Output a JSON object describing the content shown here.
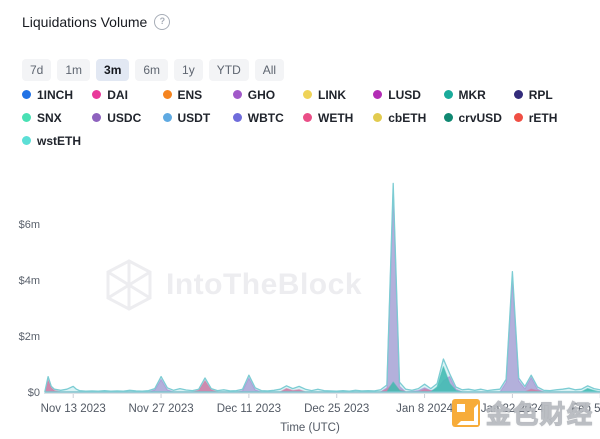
{
  "header": {
    "title": "Liquidations Volume",
    "help_icon": "?"
  },
  "time_range": {
    "options": [
      "7d",
      "1m",
      "3m",
      "6m",
      "1y",
      "YTD",
      "All"
    ],
    "selected": "3m"
  },
  "legend": {
    "items": [
      {
        "label": "1INCH",
        "color": "#2172E5"
      },
      {
        "label": "DAI",
        "color": "#E9399B"
      },
      {
        "label": "ENS",
        "color": "#F5841F"
      },
      {
        "label": "GHO",
        "color": "#A159C9"
      },
      {
        "label": "LINK",
        "color": "#EFD358"
      },
      {
        "label": "LUSD",
        "color": "#B32DB5"
      },
      {
        "label": "MKR",
        "color": "#1AAB9B"
      },
      {
        "label": "RPL",
        "color": "#332C7B"
      },
      {
        "label": "SNX",
        "color": "#49E0B4"
      },
      {
        "label": "USDC",
        "color": "#8E62BE"
      },
      {
        "label": "USDT",
        "color": "#5FAAE2"
      },
      {
        "label": "WBTC",
        "color": "#6F6CDB"
      },
      {
        "label": "WETH",
        "color": "#EA4E87"
      },
      {
        "label": "cbETH",
        "color": "#E2CB4F"
      },
      {
        "label": "crvUSD",
        "color": "#108872"
      },
      {
        "label": "rETH",
        "color": "#F04F44"
      },
      {
        "label": "wstETH",
        "color": "#5CDFD6"
      }
    ]
  },
  "watermark": {
    "brand": "IntoTheBlock"
  },
  "footer_watermark": {
    "text": "金色财经"
  },
  "chart_data": {
    "type": "area",
    "title": "Liquidations Volume",
    "xlabel": "Time (UTC)",
    "ylabel": "",
    "unit": "USD millions",
    "x_unit": "days since 2023-11-06",
    "ylim": [
      0,
      7.8
    ],
    "grid": false,
    "y_ticks": [
      {
        "value": 0,
        "label": "$0"
      },
      {
        "value": 2,
        "label": "$2m"
      },
      {
        "value": 4,
        "label": "$4m"
      },
      {
        "value": 6,
        "label": "$6m"
      }
    ],
    "x_ticks": [
      {
        "day": 7,
        "label": "Nov 13 2023"
      },
      {
        "day": 21,
        "label": "Nov 27 2023"
      },
      {
        "day": 35,
        "label": "Dec 11 2023"
      },
      {
        "day": 49,
        "label": "Dec 25 2023"
      },
      {
        "day": 63,
        "label": "Jan 8 2024"
      },
      {
        "day": 77,
        "label": "Jan 22 2024"
      },
      {
        "day": 91,
        "label": "Feb 5 2024"
      }
    ],
    "notable_peaks": [
      {
        "date": "Nov 9 2023",
        "total_m": 0.55
      },
      {
        "date": "Nov 27 2023",
        "total_m": 0.55
      },
      {
        "date": "Dec 4 2023",
        "total_m": 0.5
      },
      {
        "date": "Dec 11 2023",
        "total_m": 0.6
      },
      {
        "date": "Jan 3 2024",
        "total_m": 7.45
      },
      {
        "date": "Jan 11 2024",
        "total_m": 1.18
      },
      {
        "date": "Jan 22 2024",
        "total_m": 4.3
      },
      {
        "date": "Jan 25 2024",
        "total_m": 0.6
      }
    ],
    "series": [
      {
        "name": "GHO",
        "fill": "rgba(190,142,212,0.9)",
        "stroke": "rgba(161,89,201,0.5)",
        "points": [
          [
            2.5,
            0
          ],
          [
            19,
            0
          ],
          [
            20,
            0.08
          ],
          [
            21,
            0.45
          ],
          [
            22,
            0.08
          ],
          [
            23,
            0
          ],
          [
            33,
            0
          ],
          [
            34,
            0.05
          ],
          [
            35,
            0.5
          ],
          [
            36,
            0.08
          ],
          [
            37,
            0
          ],
          [
            56,
            0
          ],
          [
            57,
            0.15
          ],
          [
            58,
            7.15
          ],
          [
            59,
            0.2
          ],
          [
            60,
            0
          ],
          [
            62,
            0.05
          ],
          [
            63,
            0.15
          ],
          [
            64,
            0.05
          ],
          [
            65,
            0.1
          ],
          [
            66,
            0.4
          ],
          [
            67,
            0.55
          ],
          [
            68,
            0.1
          ],
          [
            69,
            0
          ],
          [
            75,
            0
          ],
          [
            76,
            0.35
          ],
          [
            77,
            4.1
          ],
          [
            78,
            0.4
          ],
          [
            79,
            0.12
          ],
          [
            80,
            0.52
          ],
          [
            81,
            0.1
          ],
          [
            82,
            0
          ],
          [
            93,
            0
          ]
        ]
      },
      {
        "name": "WETH",
        "fill": "rgba(234,78,135,0.9)",
        "stroke": "rgba(234,78,135,0.6)",
        "points": [
          [
            2.5,
            0
          ],
          [
            3,
            0.42
          ],
          [
            3.5,
            0.15
          ],
          [
            4,
            0.05
          ],
          [
            5,
            0
          ],
          [
            26,
            0
          ],
          [
            27,
            0.06
          ],
          [
            28,
            0.4
          ],
          [
            29,
            0.08
          ],
          [
            30,
            0
          ],
          [
            40,
            0
          ],
          [
            41,
            0.12
          ],
          [
            42,
            0.05
          ],
          [
            43,
            0.08
          ],
          [
            44,
            0
          ],
          [
            56,
            0
          ],
          [
            57,
            0.1
          ],
          [
            58,
            0.3
          ],
          [
            59,
            0.08
          ],
          [
            60,
            0
          ],
          [
            62,
            0
          ],
          [
            63,
            0.1
          ],
          [
            64,
            0.04
          ],
          [
            65,
            0
          ],
          [
            79,
            0
          ],
          [
            80,
            0.1
          ],
          [
            81,
            0.05
          ],
          [
            82,
            0
          ],
          [
            93,
            0
          ]
        ]
      },
      {
        "name": "MKR",
        "fill": "rgba(26,171,155,0.9)",
        "stroke": "rgba(26,171,155,0.6)",
        "points": [
          [
            2.5,
            0
          ],
          [
            57,
            0
          ],
          [
            58,
            0.35
          ],
          [
            59,
            0.05
          ],
          [
            60,
            0
          ],
          [
            64,
            0
          ],
          [
            65,
            0.18
          ],
          [
            66,
            0.9
          ],
          [
            67,
            0.3
          ],
          [
            68,
            0.05
          ],
          [
            69,
            0
          ],
          [
            88,
            0
          ],
          [
            89,
            0.12
          ],
          [
            90,
            0.05
          ],
          [
            91,
            0
          ],
          [
            92,
            0.1
          ],
          [
            93,
            0.2
          ]
        ]
      },
      {
        "name": "wstETH",
        "fill": "rgba(150,222,226,0.35)",
        "stroke": "#7CCCD3",
        "points": [
          [
            2.5,
            0.04
          ],
          [
            3,
            0.55
          ],
          [
            3.5,
            0.2
          ],
          [
            4,
            0.1
          ],
          [
            5,
            0.06
          ],
          [
            6,
            0.1
          ],
          [
            7,
            0.2
          ],
          [
            7.5,
            0.1
          ],
          [
            8,
            0.05
          ],
          [
            9,
            0.03
          ],
          [
            10,
            0.04
          ],
          [
            11,
            0.03
          ],
          [
            12,
            0.05
          ],
          [
            13,
            0.03
          ],
          [
            14,
            0.04
          ],
          [
            15,
            0.03
          ],
          [
            16,
            0.06
          ],
          [
            17,
            0.04
          ],
          [
            18,
            0.03
          ],
          [
            19,
            0.05
          ],
          [
            20,
            0.12
          ],
          [
            21,
            0.55
          ],
          [
            22,
            0.15
          ],
          [
            23,
            0.06
          ],
          [
            24,
            0.12
          ],
          [
            25,
            0.07
          ],
          [
            26,
            0.05
          ],
          [
            27,
            0.1
          ],
          [
            28,
            0.5
          ],
          [
            29,
            0.12
          ],
          [
            30,
            0.05
          ],
          [
            31,
            0.08
          ],
          [
            32,
            0.04
          ],
          [
            33,
            0.05
          ],
          [
            34,
            0.1
          ],
          [
            35,
            0.6
          ],
          [
            36,
            0.15
          ],
          [
            37,
            0.05
          ],
          [
            38,
            0.04
          ],
          [
            39,
            0.06
          ],
          [
            40,
            0.1
          ],
          [
            41,
            0.22
          ],
          [
            42,
            0.12
          ],
          [
            43,
            0.2
          ],
          [
            44,
            0.1
          ],
          [
            45,
            0.05
          ],
          [
            46,
            0.1
          ],
          [
            47,
            0.05
          ],
          [
            48,
            0.04
          ],
          [
            49,
            0.03
          ],
          [
            50,
            0.05
          ],
          [
            51,
            0.03
          ],
          [
            52,
            0.06
          ],
          [
            53,
            0.04
          ],
          [
            54,
            0.05
          ],
          [
            55,
            0.04
          ],
          [
            56,
            0.08
          ],
          [
            57,
            0.25
          ],
          [
            58,
            7.45
          ],
          [
            59,
            0.35
          ],
          [
            60,
            0.1
          ],
          [
            61,
            0.06
          ],
          [
            62,
            0.12
          ],
          [
            63,
            0.28
          ],
          [
            64,
            0.12
          ],
          [
            65,
            0.3
          ],
          [
            66,
            1.18
          ],
          [
            67,
            0.65
          ],
          [
            68,
            0.18
          ],
          [
            69,
            0.08
          ],
          [
            70,
            0.1
          ],
          [
            71,
            0.06
          ],
          [
            72,
            0.1
          ],
          [
            73,
            0.05
          ],
          [
            74,
            0.08
          ],
          [
            75,
            0.1
          ],
          [
            76,
            0.45
          ],
          [
            77,
            4.3
          ],
          [
            78,
            0.5
          ],
          [
            79,
            0.2
          ],
          [
            80,
            0.6
          ],
          [
            81,
            0.18
          ],
          [
            82,
            0.06
          ],
          [
            83,
            0.05
          ],
          [
            84,
            0.08
          ],
          [
            85,
            0.1
          ],
          [
            86,
            0.14
          ],
          [
            87,
            0.08
          ],
          [
            88,
            0.1
          ],
          [
            89,
            0.22
          ],
          [
            90,
            0.12
          ],
          [
            91,
            0.08
          ],
          [
            92,
            0.15
          ],
          [
            93,
            0.3
          ]
        ]
      }
    ]
  }
}
